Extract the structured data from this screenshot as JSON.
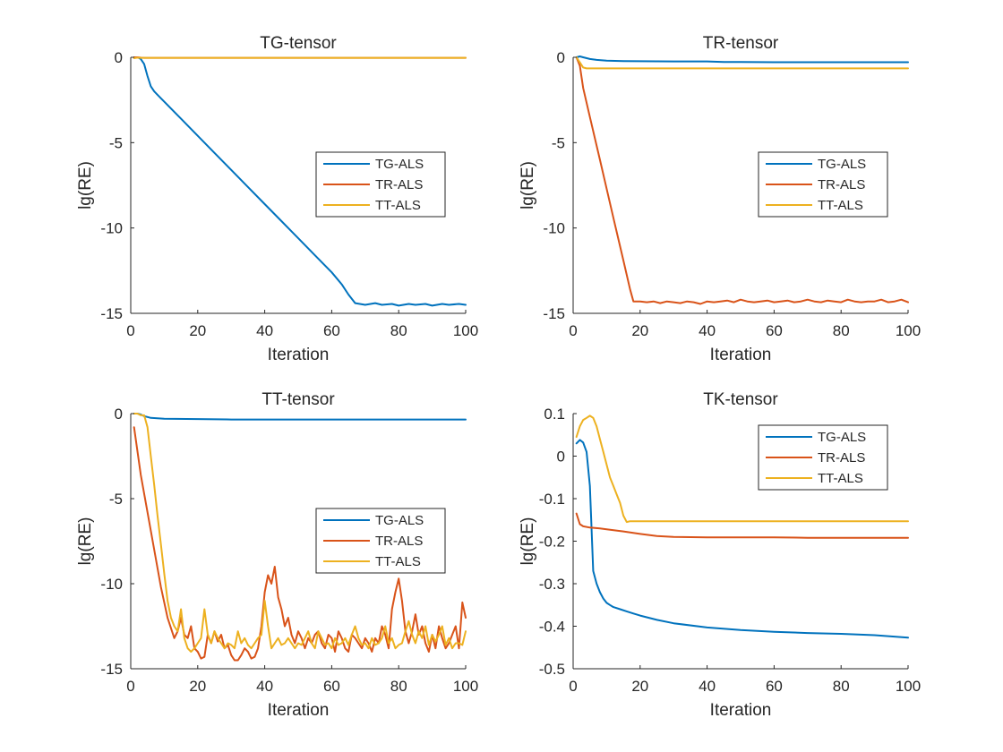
{
  "colors": {
    "tg": "#0072BD",
    "tr": "#D95319",
    "tt": "#EDB120",
    "axis": "#262626"
  },
  "chart_data": [
    {
      "type": "line",
      "title": "TG-tensor",
      "xlabel": "Iteration",
      "ylabel": "lg(RE)",
      "xlim": [
        0,
        100
      ],
      "ylim": [
        -15,
        0
      ],
      "xticks": [
        0,
        20,
        40,
        60,
        80,
        100
      ],
      "xtick_labels": [
        "0",
        "20",
        "40",
        "60",
        "80",
        "100"
      ],
      "yticks": [
        -15,
        -10,
        -5,
        0
      ],
      "ytick_labels": [
        "-15",
        "-10",
        "-5",
        "0"
      ],
      "legend_position": "middle-right",
      "legend": [
        "TG-ALS",
        "TR-ALS",
        "TT-ALS"
      ],
      "series": [
        {
          "name": "TG-ALS",
          "color": "#0072BD",
          "x": [
            1,
            2,
            3,
            4,
            5,
            6,
            7,
            8,
            9,
            10,
            15,
            20,
            25,
            30,
            35,
            40,
            45,
            50,
            55,
            60,
            63,
            65,
            67,
            70,
            73,
            75,
            78,
            80,
            83,
            85,
            88,
            90,
            93,
            95,
            98,
            100
          ],
          "y": [
            0,
            0,
            -0.1,
            -0.4,
            -1.1,
            -1.7,
            -2.0,
            -2.2,
            -2.4,
            -2.6,
            -3.6,
            -4.6,
            -5.6,
            -6.6,
            -7.6,
            -8.6,
            -9.6,
            -10.6,
            -11.6,
            -12.6,
            -13.3,
            -13.9,
            -14.4,
            -14.5,
            -14.4,
            -14.5,
            -14.45,
            -14.55,
            -14.45,
            -14.5,
            -14.45,
            -14.55,
            -14.45,
            -14.5,
            -14.45,
            -14.5
          ]
        },
        {
          "name": "TR-ALS",
          "color": "#D95319",
          "x": [
            1,
            2,
            3,
            4,
            5,
            10,
            20,
            40,
            60,
            80,
            100
          ],
          "y": [
            0,
            0,
            -0.02,
            -0.03,
            -0.03,
            -0.03,
            -0.03,
            -0.03,
            -0.03,
            -0.03,
            -0.03
          ]
        },
        {
          "name": "TT-ALS",
          "color": "#EDB120",
          "x": [
            1,
            2,
            3,
            4,
            5,
            10,
            20,
            40,
            60,
            80,
            100
          ],
          "y": [
            -0.05,
            -0.02,
            -0.03,
            -0.03,
            -0.03,
            -0.03,
            -0.03,
            -0.03,
            -0.03,
            -0.03,
            -0.03
          ]
        }
      ]
    },
    {
      "type": "line",
      "title": "TR-tensor",
      "xlabel": "Iteration",
      "ylabel": "lg(RE)",
      "xlim": [
        0,
        100
      ],
      "ylim": [
        -15,
        0
      ],
      "xticks": [
        0,
        20,
        40,
        60,
        80,
        100
      ],
      "xtick_labels": [
        "0",
        "20",
        "40",
        "60",
        "80",
        "100"
      ],
      "yticks": [
        -15,
        -10,
        -5,
        0
      ],
      "ytick_labels": [
        "-15",
        "-10",
        "-5",
        "0"
      ],
      "legend_position": "middle-right",
      "legend": [
        "TG-ALS",
        "TR-ALS",
        "TT-ALS"
      ],
      "series": [
        {
          "name": "TG-ALS",
          "color": "#0072BD",
          "x": [
            1,
            2,
            3,
            5,
            7,
            10,
            15,
            20,
            30,
            40,
            45,
            50,
            60,
            70,
            80,
            90,
            100
          ],
          "y": [
            0,
            0.05,
            0,
            -0.1,
            -0.15,
            -0.2,
            -0.22,
            -0.23,
            -0.24,
            -0.24,
            -0.28,
            -0.28,
            -0.29,
            -0.29,
            -0.29,
            -0.29,
            -0.29
          ]
        },
        {
          "name": "TR-ALS",
          "color": "#D95319",
          "x": [
            1,
            2,
            3,
            5,
            8,
            10,
            12,
            15,
            17,
            18,
            20,
            22,
            24,
            26,
            28,
            30,
            32,
            34,
            36,
            38,
            40,
            42,
            44,
            46,
            48,
            50,
            52,
            54,
            56,
            58,
            60,
            62,
            64,
            66,
            68,
            70,
            72,
            74,
            76,
            78,
            80,
            82,
            84,
            86,
            88,
            90,
            92,
            94,
            96,
            98,
            100
          ],
          "y": [
            0,
            -0.5,
            -1.8,
            -3.5,
            -6.0,
            -7.7,
            -9.4,
            -11.9,
            -13.6,
            -14.3,
            -14.3,
            -14.35,
            -14.3,
            -14.4,
            -14.3,
            -14.35,
            -14.4,
            -14.3,
            -14.35,
            -14.45,
            -14.3,
            -14.35,
            -14.3,
            -14.25,
            -14.35,
            -14.2,
            -14.3,
            -14.35,
            -14.3,
            -14.25,
            -14.35,
            -14.3,
            -14.25,
            -14.35,
            -14.3,
            -14.2,
            -14.3,
            -14.35,
            -14.25,
            -14.3,
            -14.35,
            -14.2,
            -14.3,
            -14.35,
            -14.3,
            -14.3,
            -14.2,
            -14.35,
            -14.3,
            -14.2,
            -14.35
          ]
        },
        {
          "name": "TT-ALS",
          "color": "#EDB120",
          "x": [
            1,
            2,
            3,
            4,
            5,
            10,
            20,
            40,
            60,
            80,
            100
          ],
          "y": [
            0,
            -0.3,
            -0.6,
            -0.65,
            -0.65,
            -0.65,
            -0.65,
            -0.65,
            -0.65,
            -0.65,
            -0.65
          ]
        }
      ]
    },
    {
      "type": "line",
      "title": "TT-tensor",
      "xlabel": "Iteration",
      "ylabel": "lg(RE)",
      "xlim": [
        0,
        100
      ],
      "ylim": [
        -15,
        0
      ],
      "xticks": [
        0,
        20,
        40,
        60,
        80,
        100
      ],
      "xtick_labels": [
        "0",
        "20",
        "40",
        "60",
        "80",
        "100"
      ],
      "yticks": [
        -15,
        -10,
        -5,
        0
      ],
      "ytick_labels": [
        "-15",
        "-10",
        "-5",
        "0"
      ],
      "legend_position": "lower-middle-right",
      "legend": [
        "TG-ALS",
        "TR-ALS",
        "TT-ALS"
      ],
      "series": [
        {
          "name": "TG-ALS",
          "color": "#0072BD",
          "x": [
            1,
            2,
            3,
            4,
            5,
            6,
            8,
            10,
            20,
            30,
            40,
            60,
            80,
            100
          ],
          "y": [
            0,
            0,
            -0.05,
            -0.15,
            -0.2,
            -0.25,
            -0.28,
            -0.3,
            -0.32,
            -0.35,
            -0.35,
            -0.35,
            -0.35,
            -0.35
          ]
        },
        {
          "name": "TR-ALS",
          "color": "#D95319",
          "x": [
            1,
            3,
            5,
            7,
            9,
            11,
            13,
            14,
            15,
            16,
            17,
            18,
            19,
            20,
            21,
            22,
            23,
            24,
            25,
            26,
            27,
            28,
            29,
            30,
            31,
            32,
            33,
            34,
            35,
            36,
            37,
            38,
            39,
            40,
            41,
            42,
            43,
            44,
            45,
            46,
            47,
            48,
            49,
            50,
            51,
            52,
            53,
            54,
            55,
            56,
            57,
            58,
            59,
            60,
            61,
            62,
            63,
            64,
            65,
            66,
            67,
            68,
            69,
            70,
            71,
            72,
            73,
            74,
            75,
            76,
            77,
            78,
            79,
            80,
            81,
            82,
            83,
            84,
            85,
            86,
            87,
            88,
            89,
            90,
            91,
            92,
            93,
            94,
            95,
            96,
            97,
            98,
            99,
            100
          ],
          "y": [
            -0.8,
            -3.6,
            -5.8,
            -8.0,
            -10.2,
            -12.0,
            -13.2,
            -12.8,
            -12.0,
            -13.0,
            -13.2,
            -12.5,
            -13.8,
            -14.0,
            -14.4,
            -14.3,
            -13.0,
            -13.5,
            -12.8,
            -13.4,
            -13.0,
            -13.8,
            -13.6,
            -14.2,
            -14.5,
            -14.5,
            -14.2,
            -13.8,
            -14.0,
            -14.4,
            -14.3,
            -13.8,
            -12.5,
            -10.5,
            -9.5,
            -10.0,
            -9.0,
            -10.8,
            -11.5,
            -12.5,
            -12.0,
            -13.0,
            -13.5,
            -12.8,
            -13.2,
            -13.8,
            -13.2,
            -13.5,
            -13.0,
            -12.8,
            -13.5,
            -13.8,
            -13.0,
            -13.2,
            -14.0,
            -12.8,
            -13.2,
            -13.8,
            -14.0,
            -13.0,
            -13.2,
            -13.5,
            -13.8,
            -13.2,
            -13.5,
            -14.0,
            -13.2,
            -13.5,
            -12.5,
            -13.0,
            -13.8,
            -11.5,
            -10.5,
            -9.7,
            -11.0,
            -12.8,
            -13.5,
            -12.8,
            -11.8,
            -13.0,
            -12.5,
            -13.5,
            -14.0,
            -13.0,
            -13.8,
            -12.5,
            -13.2,
            -13.8,
            -13.5,
            -13.0,
            -12.5,
            -13.8,
            -11.1,
            -12.0
          ]
        },
        {
          "name": "TT-ALS",
          "color": "#EDB120",
          "x": [
            1,
            2,
            3,
            4,
            5,
            6,
            7,
            8,
            9,
            10,
            11,
            12,
            13,
            14,
            15,
            16,
            17,
            18,
            19,
            20,
            21,
            22,
            23,
            24,
            25,
            26,
            27,
            28,
            29,
            30,
            31,
            32,
            33,
            34,
            35,
            36,
            37,
            38,
            39,
            40,
            41,
            42,
            43,
            44,
            45,
            46,
            47,
            48,
            49,
            50,
            51,
            52,
            53,
            54,
            55,
            56,
            57,
            58,
            59,
            60,
            61,
            62,
            63,
            64,
            65,
            66,
            67,
            68,
            69,
            70,
            71,
            72,
            73,
            74,
            75,
            76,
            77,
            78,
            79,
            80,
            81,
            82,
            83,
            84,
            85,
            86,
            87,
            88,
            89,
            90,
            91,
            92,
            93,
            94,
            95,
            96,
            97,
            98,
            99,
            100
          ],
          "y": [
            0,
            0,
            -0.1,
            -0.1,
            -0.8,
            -2.5,
            -4.2,
            -6.0,
            -7.7,
            -9.4,
            -11.0,
            -12.0,
            -12.5,
            -12.8,
            -11.5,
            -13.2,
            -13.8,
            -14.0,
            -13.8,
            -13.5,
            -13.2,
            -11.5,
            -13.0,
            -13.5,
            -12.8,
            -13.2,
            -13.5,
            -13.8,
            -13.5,
            -13.6,
            -13.8,
            -12.8,
            -13.5,
            -13.2,
            -13.6,
            -13.8,
            -13.5,
            -13.2,
            -13.0,
            -11.0,
            -12.5,
            -13.8,
            -13.5,
            -13.2,
            -13.6,
            -13.5,
            -13.2,
            -13.5,
            -13.8,
            -13.5,
            -13.6,
            -13.2,
            -12.8,
            -13.5,
            -13.8,
            -12.8,
            -13.2,
            -13.6,
            -13.5,
            -13.8,
            -13.2,
            -13.6,
            -13.5,
            -13.2,
            -13.6,
            -13.0,
            -12.5,
            -13.2,
            -13.6,
            -13.5,
            -13.8,
            -13.2,
            -13.6,
            -13.5,
            -13.2,
            -12.5,
            -13.5,
            -13.2,
            -13.8,
            -13.6,
            -13.5,
            -12.8,
            -12.2,
            -13.0,
            -13.5,
            -12.8,
            -13.2,
            -12.5,
            -13.6,
            -13.0,
            -13.4,
            -13.0,
            -12.5,
            -13.6,
            -13.2,
            -13.8,
            -13.5,
            -13.5,
            -13.6,
            -12.8
          ]
        }
      ]
    },
    {
      "type": "line",
      "title": "TK-tensor",
      "xlabel": "Iteration",
      "ylabel": "lg(RE)",
      "xlim": [
        0,
        100
      ],
      "ylim": [
        -0.5,
        0.1
      ],
      "xticks": [
        0,
        20,
        40,
        60,
        80,
        100
      ],
      "xtick_labels": [
        "0",
        "20",
        "40",
        "60",
        "80",
        "100"
      ],
      "yticks": [
        -0.5,
        -0.4,
        -0.3,
        -0.2,
        -0.1,
        0,
        0.1
      ],
      "ytick_labels": [
        "-0.5",
        "-0.4",
        "-0.3",
        "-0.2",
        "-0.1",
        "0",
        "0.1"
      ],
      "legend_position": "top-right",
      "legend": [
        "TG-ALS",
        "TR-ALS",
        "TT-ALS"
      ],
      "series": [
        {
          "name": "TG-ALS",
          "color": "#0072BD",
          "x": [
            1,
            2,
            3,
            4,
            5,
            6,
            7,
            8,
            9,
            10,
            11,
            12,
            14,
            16,
            18,
            20,
            25,
            30,
            40,
            50,
            60,
            70,
            80,
            90,
            95,
            100
          ],
          "y": [
            0.03,
            0.038,
            0.032,
            0.01,
            -0.07,
            -0.27,
            -0.3,
            -0.32,
            -0.335,
            -0.345,
            -0.35,
            -0.355,
            -0.36,
            -0.365,
            -0.37,
            -0.375,
            -0.385,
            -0.393,
            -0.403,
            -0.409,
            -0.413,
            -0.416,
            -0.418,
            -0.421,
            -0.424,
            -0.427
          ]
        },
        {
          "name": "TR-ALS",
          "color": "#D95319",
          "x": [
            1,
            2,
            3,
            5,
            8,
            10,
            15,
            20,
            25,
            30,
            40,
            50,
            60,
            70,
            80,
            90,
            100
          ],
          "y": [
            -0.135,
            -0.16,
            -0.165,
            -0.168,
            -0.17,
            -0.172,
            -0.177,
            -0.183,
            -0.188,
            -0.19,
            -0.191,
            -0.191,
            -0.191,
            -0.192,
            -0.192,
            -0.192,
            -0.192
          ]
        },
        {
          "name": "TT-ALS",
          "color": "#EDB120",
          "x": [
            1,
            2,
            3,
            4,
            5,
            6,
            7,
            8,
            9,
            10,
            11,
            12,
            13,
            14,
            15,
            16,
            17,
            20,
            30,
            40,
            60,
            80,
            100
          ],
          "y": [
            0.045,
            0.07,
            0.085,
            0.09,
            0.095,
            0.09,
            0.07,
            0.04,
            0.01,
            -0.02,
            -0.05,
            -0.07,
            -0.09,
            -0.11,
            -0.14,
            -0.155,
            -0.153,
            -0.153,
            -0.153,
            -0.153,
            -0.153,
            -0.153,
            -0.153
          ]
        }
      ]
    }
  ]
}
